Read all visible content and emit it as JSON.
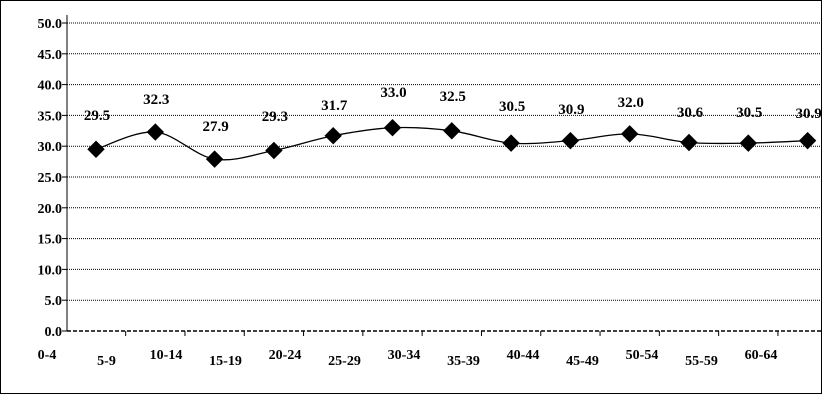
{
  "chart_data": {
    "type": "line",
    "title": "",
    "xlabel": "",
    "ylabel": "",
    "categories": [
      "0-4",
      "5-9",
      "10-14",
      "15-19",
      "20-24",
      "25-29",
      "30-34",
      "35-39",
      "40-44",
      "45-49",
      "50-54",
      "55-59",
      "60-64"
    ],
    "series": [
      {
        "values": [
          29.5,
          32.3,
          27.9,
          29.3,
          31.7,
          33.0,
          32.5,
          30.5,
          30.9,
          32.0,
          30.6,
          30.5,
          30.9
        ],
        "labels": [
          "29.5",
          "32.3",
          "27.9",
          "29.3",
          "31.7",
          "33.0",
          "32.5",
          "30.5",
          "30.9",
          "32.0",
          "30.6",
          "30.5",
          "30.9"
        ],
        "marker": "diamond",
        "smooth": true,
        "color": "#000000"
      }
    ],
    "yticks": [
      "0.0",
      "5.0",
      "10.0",
      "15.0",
      "20.0",
      "25.0",
      "30.0",
      "35.0",
      "40.0",
      "45.0",
      "50.0"
    ],
    "ylim": [
      0,
      50
    ],
    "grid": true,
    "legend": "none"
  }
}
